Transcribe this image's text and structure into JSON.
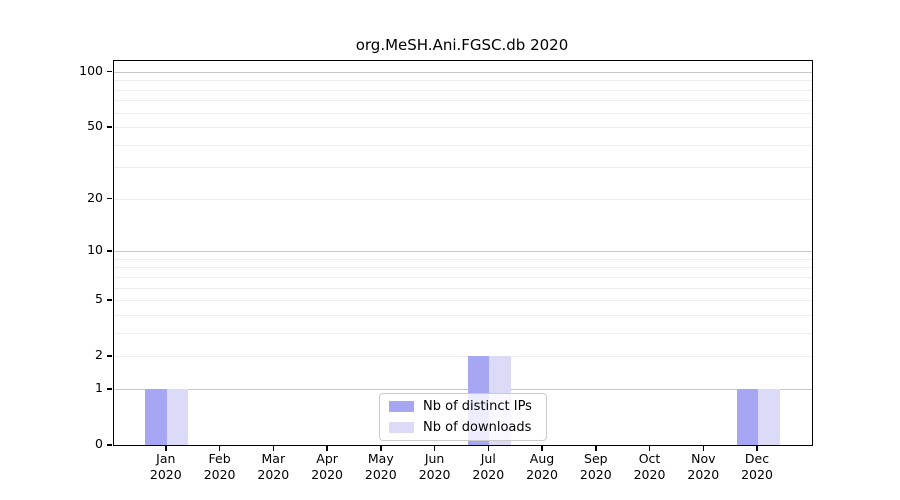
{
  "title": "org.MeSH.Ani.FGSC.db 2020",
  "legend": {
    "items": [
      {
        "label": "Nb of distinct IPs",
        "color": "#a6a6f2"
      },
      {
        "label": "Nb of downloads",
        "color": "#dbdbf8"
      }
    ]
  },
  "chart_data": {
    "type": "bar",
    "title": "org.MeSH.Ani.FGSC.db 2020",
    "months": [
      "Jan",
      "Feb",
      "Mar",
      "Apr",
      "May",
      "Jun",
      "Jul",
      "Aug",
      "Sep",
      "Oct",
      "Nov",
      "Dec"
    ],
    "year": "2020",
    "categories": [
      "Jan 2020",
      "Feb 2020",
      "Mar 2020",
      "Apr 2020",
      "May 2020",
      "Jun 2020",
      "Jul 2020",
      "Aug 2020",
      "Sep 2020",
      "Oct 2020",
      "Nov 2020",
      "Dec 2020"
    ],
    "series": [
      {
        "name": "Nb of distinct IPs",
        "color": "#a6a6f2",
        "values": [
          1,
          0,
          0,
          0,
          0,
          0,
          2,
          0,
          0,
          0,
          0,
          1
        ]
      },
      {
        "name": "Nb of downloads",
        "color": "#dbdbf8",
        "values": [
          1,
          0,
          0,
          0,
          0,
          0,
          2,
          0,
          0,
          0,
          0,
          1
        ]
      }
    ],
    "xlabel": "",
    "ylabel": "",
    "yscale": "log1p",
    "ylim": [
      0,
      114
    ],
    "yticks": [
      0,
      1,
      2,
      5,
      10,
      20,
      50,
      100
    ],
    "major_gridlines": [
      1,
      10,
      100
    ],
    "minor_gridlines": [
      2,
      3,
      4,
      5,
      6,
      7,
      8,
      9,
      20,
      30,
      40,
      50,
      60,
      70,
      80,
      90
    ],
    "grid": "horizontal",
    "legend_position": "lower center"
  }
}
